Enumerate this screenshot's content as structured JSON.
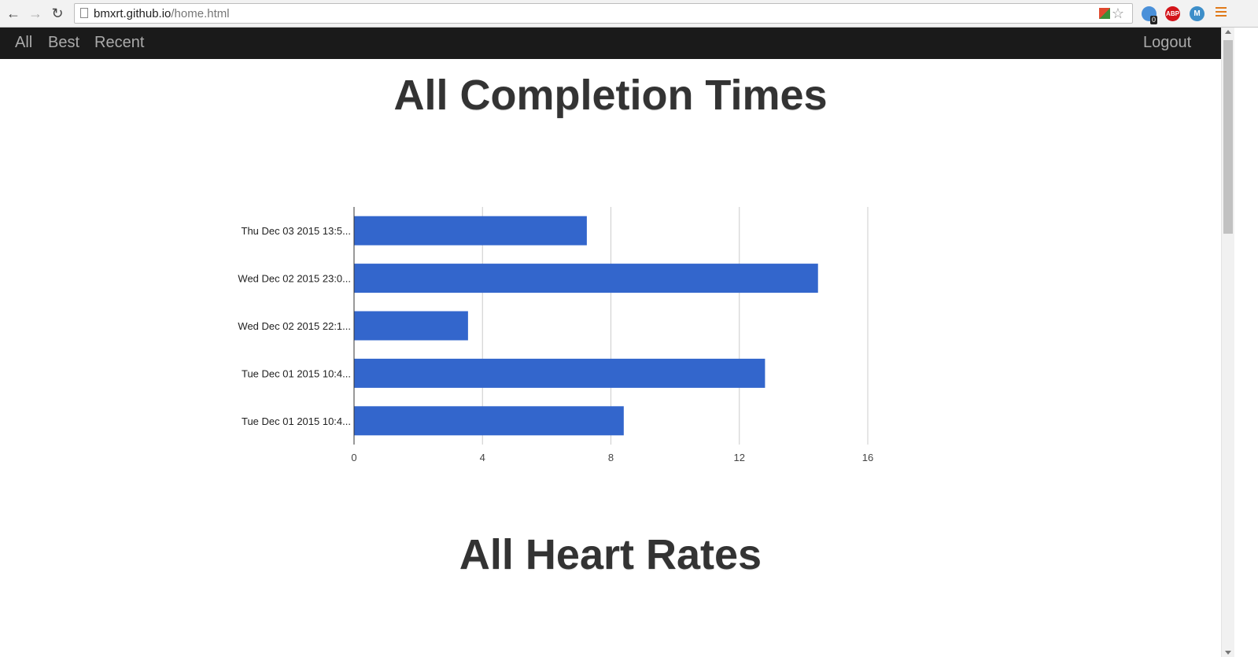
{
  "browser": {
    "url_host": "bmxrt.github.io",
    "url_path": "/home.html",
    "extension_badge": "0",
    "extension_abp": "ABP",
    "extension_m": "M"
  },
  "navbar": {
    "items": [
      {
        "label": "All"
      },
      {
        "label": "Best"
      },
      {
        "label": "Recent"
      }
    ],
    "logout_label": "Logout"
  },
  "sections": {
    "completion_title": "All Completion Times",
    "heart_title": "All Heart Rates"
  },
  "colors": {
    "bar": "#3366cc",
    "navbar_bg": "#1a1a1a"
  },
  "chart_data": {
    "type": "bar",
    "orientation": "horizontal",
    "categories": [
      "Thu Dec 03 2015 13:5...",
      "Wed Dec 02 2015 23:0...",
      "Wed Dec 02 2015 22:1...",
      "Tue Dec 01 2015 10:4...",
      "Tue Dec 01 2015 10:4..."
    ],
    "values": [
      7.25,
      14.45,
      3.55,
      12.8,
      8.4
    ],
    "xlim": [
      0,
      16
    ],
    "xticks": [
      0,
      4,
      8,
      12,
      16
    ],
    "grid": true,
    "legend": "none"
  }
}
